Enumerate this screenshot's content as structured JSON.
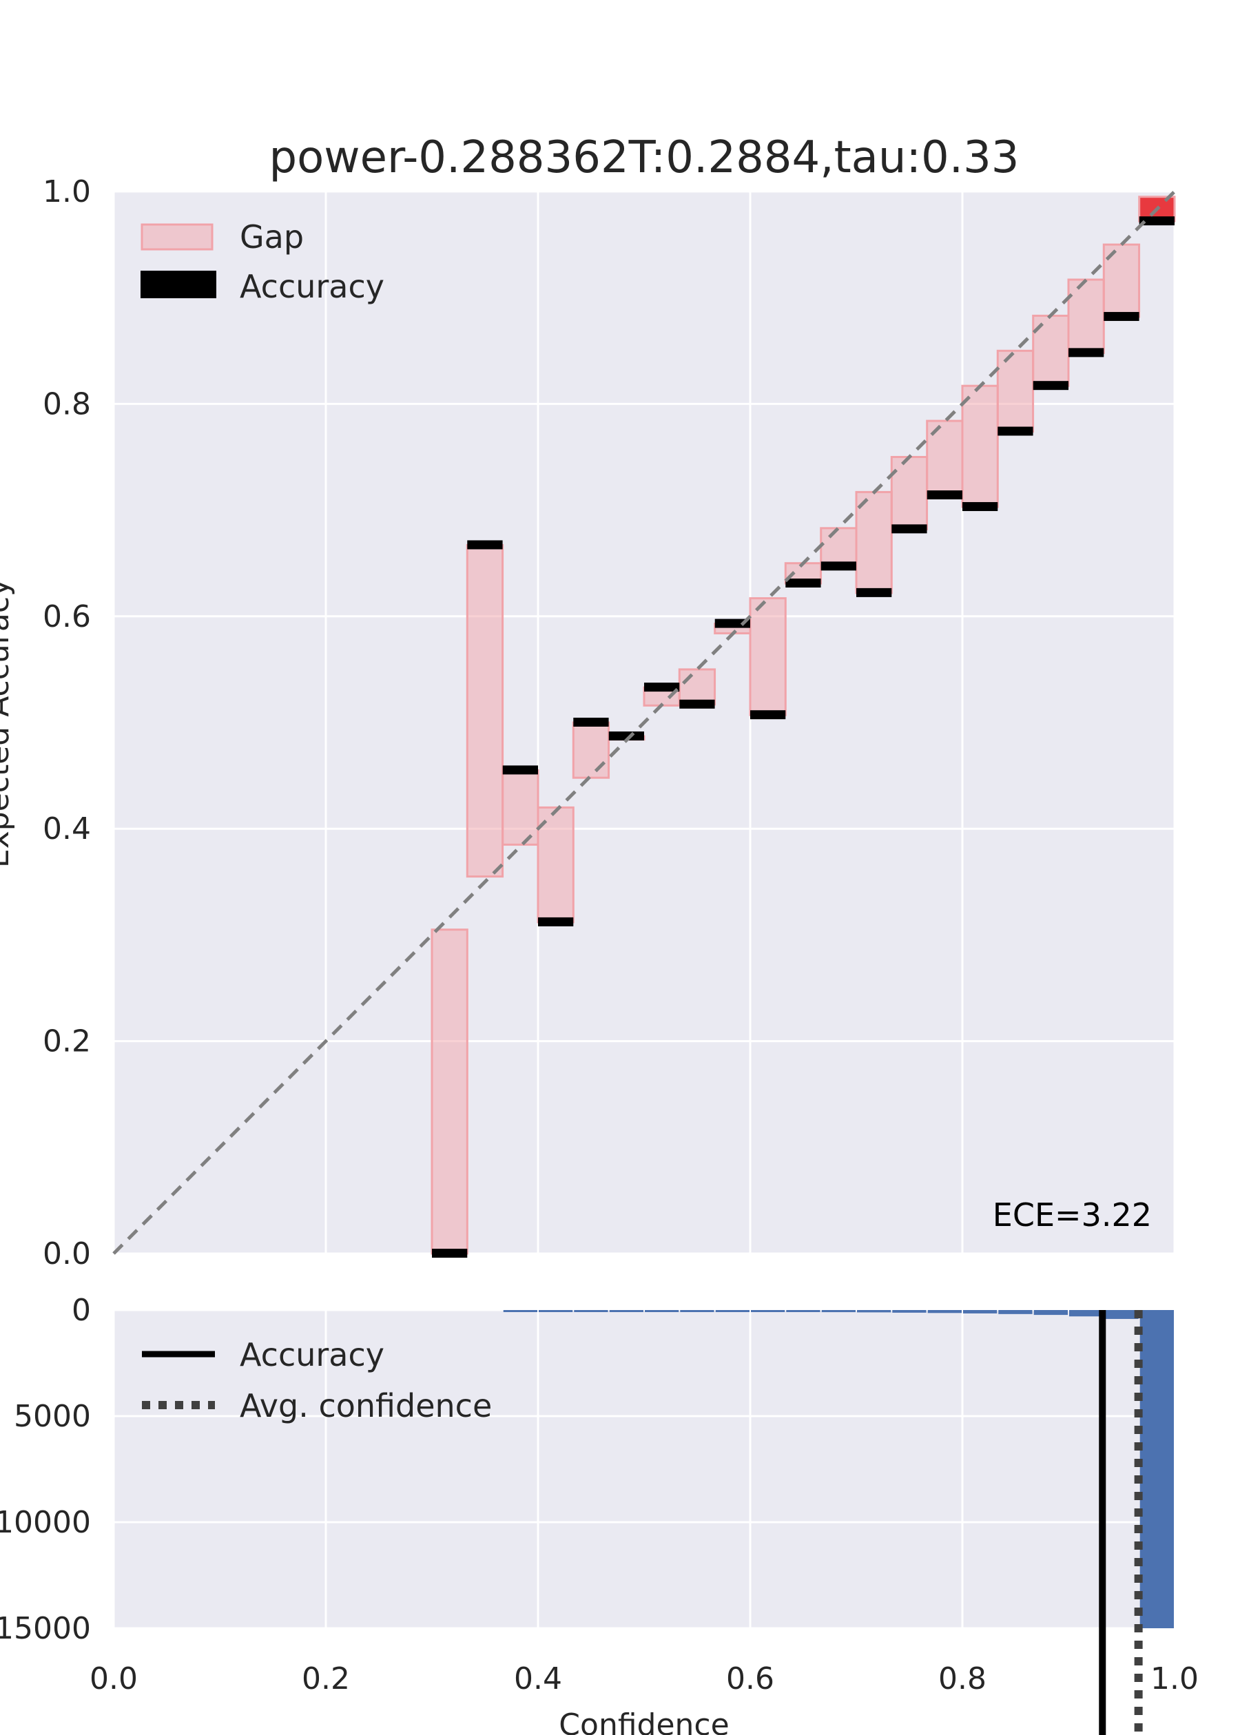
{
  "chart_data": [
    {
      "type": "bar",
      "panel": "reliability",
      "title": "power-0.288362T:0.2884,tau:0.33",
      "xlabel": "",
      "ylabel": "Expected Accuracy",
      "xlim": [
        0.0,
        1.0
      ],
      "ylim": [
        0.0,
        1.0
      ],
      "x_ticks": [
        "0.0",
        "0.2",
        "0.4",
        "0.6",
        "0.8",
        "1.0"
      ],
      "y_ticks": [
        "0.0",
        "0.2",
        "0.4",
        "0.6",
        "0.8",
        "1.0"
      ],
      "grid": true,
      "legend": {
        "position": "top-left",
        "entries": [
          "Gap",
          "Accuracy"
        ]
      },
      "annotation": "ECE=3.22",
      "diagonal": "perfect calibration (dashed)",
      "bin_width": 0.0333,
      "bins": [
        {
          "left": 0.3,
          "confidence": 0.305,
          "accuracy": 0.0
        },
        {
          "left": 0.3333,
          "confidence": 0.355,
          "accuracy": 0.667
        },
        {
          "left": 0.3667,
          "confidence": 0.385,
          "accuracy": 0.455
        },
        {
          "left": 0.4,
          "confidence": 0.42,
          "accuracy": 0.312
        },
        {
          "left": 0.4333,
          "confidence": 0.448,
          "accuracy": 0.5
        },
        {
          "left": 0.4667,
          "confidence": 0.484,
          "accuracy": 0.487
        },
        {
          "left": 0.5,
          "confidence": 0.516,
          "accuracy": 0.533
        },
        {
          "left": 0.5333,
          "confidence": 0.55,
          "accuracy": 0.517
        },
        {
          "left": 0.5667,
          "confidence": 0.584,
          "accuracy": 0.593
        },
        {
          "left": 0.6,
          "confidence": 0.617,
          "accuracy": 0.507
        },
        {
          "left": 0.6333,
          "confidence": 0.65,
          "accuracy": 0.631
        },
        {
          "left": 0.6667,
          "confidence": 0.683,
          "accuracy": 0.647
        },
        {
          "left": 0.7,
          "confidence": 0.717,
          "accuracy": 0.622
        },
        {
          "left": 0.7333,
          "confidence": 0.75,
          "accuracy": 0.682
        },
        {
          "left": 0.7667,
          "confidence": 0.784,
          "accuracy": 0.714
        },
        {
          "left": 0.8,
          "confidence": 0.817,
          "accuracy": 0.703
        },
        {
          "left": 0.8333,
          "confidence": 0.85,
          "accuracy": 0.774
        },
        {
          "left": 0.8667,
          "confidence": 0.883,
          "accuracy": 0.817
        },
        {
          "left": 0.9,
          "confidence": 0.917,
          "accuracy": 0.848
        },
        {
          "left": 0.9333,
          "confidence": 0.95,
          "accuracy": 0.882
        },
        {
          "left": 0.9667,
          "confidence": 0.995,
          "accuracy": 0.972
        }
      ],
      "colors": {
        "gap": "#f1a3a9",
        "gap_last": "#e8393f",
        "accuracy": "#000000",
        "diagonal": "#808080",
        "background": "#eaeaf2"
      }
    },
    {
      "type": "bar",
      "panel": "histogram",
      "xlabel": "Confidence",
      "ylabel": "",
      "xlim": [
        0.0,
        1.0
      ],
      "ylim": [
        15000,
        0
      ],
      "inverted_y": true,
      "y_ticks": [
        "0",
        "5000",
        "10000",
        "15000"
      ],
      "x_ticks": [
        "0.0",
        "0.2",
        "0.4",
        "0.6",
        "0.8",
        "1.0"
      ],
      "grid": true,
      "legend": {
        "position": "top-left",
        "entries": [
          "Accuracy",
          "Avg. confidence"
        ]
      },
      "accuracy_line": 0.932,
      "avg_confidence_line": 0.966,
      "bin_width": 0.0333,
      "bins": [
        {
          "left": 0.3667,
          "count": 20
        },
        {
          "left": 0.4,
          "count": 25
        },
        {
          "left": 0.4333,
          "count": 30
        },
        {
          "left": 0.4667,
          "count": 40
        },
        {
          "left": 0.5,
          "count": 50
        },
        {
          "left": 0.5333,
          "count": 60
        },
        {
          "left": 0.5667,
          "count": 70
        },
        {
          "left": 0.6,
          "count": 80
        },
        {
          "left": 0.6333,
          "count": 90
        },
        {
          "left": 0.6667,
          "count": 100
        },
        {
          "left": 0.7,
          "count": 110
        },
        {
          "left": 0.7333,
          "count": 125
        },
        {
          "left": 0.7667,
          "count": 140
        },
        {
          "left": 0.8,
          "count": 160
        },
        {
          "left": 0.8333,
          "count": 190
        },
        {
          "left": 0.8667,
          "count": 230
        },
        {
          "left": 0.9,
          "count": 300
        },
        {
          "left": 0.9333,
          "count": 420
        },
        {
          "left": 0.9667,
          "count": 15000
        }
      ],
      "colors": {
        "bar": "#4c72b0",
        "accuracy_line": "#000000",
        "avg_conf_line": "#404040",
        "background": "#eaeaf2"
      }
    }
  ]
}
